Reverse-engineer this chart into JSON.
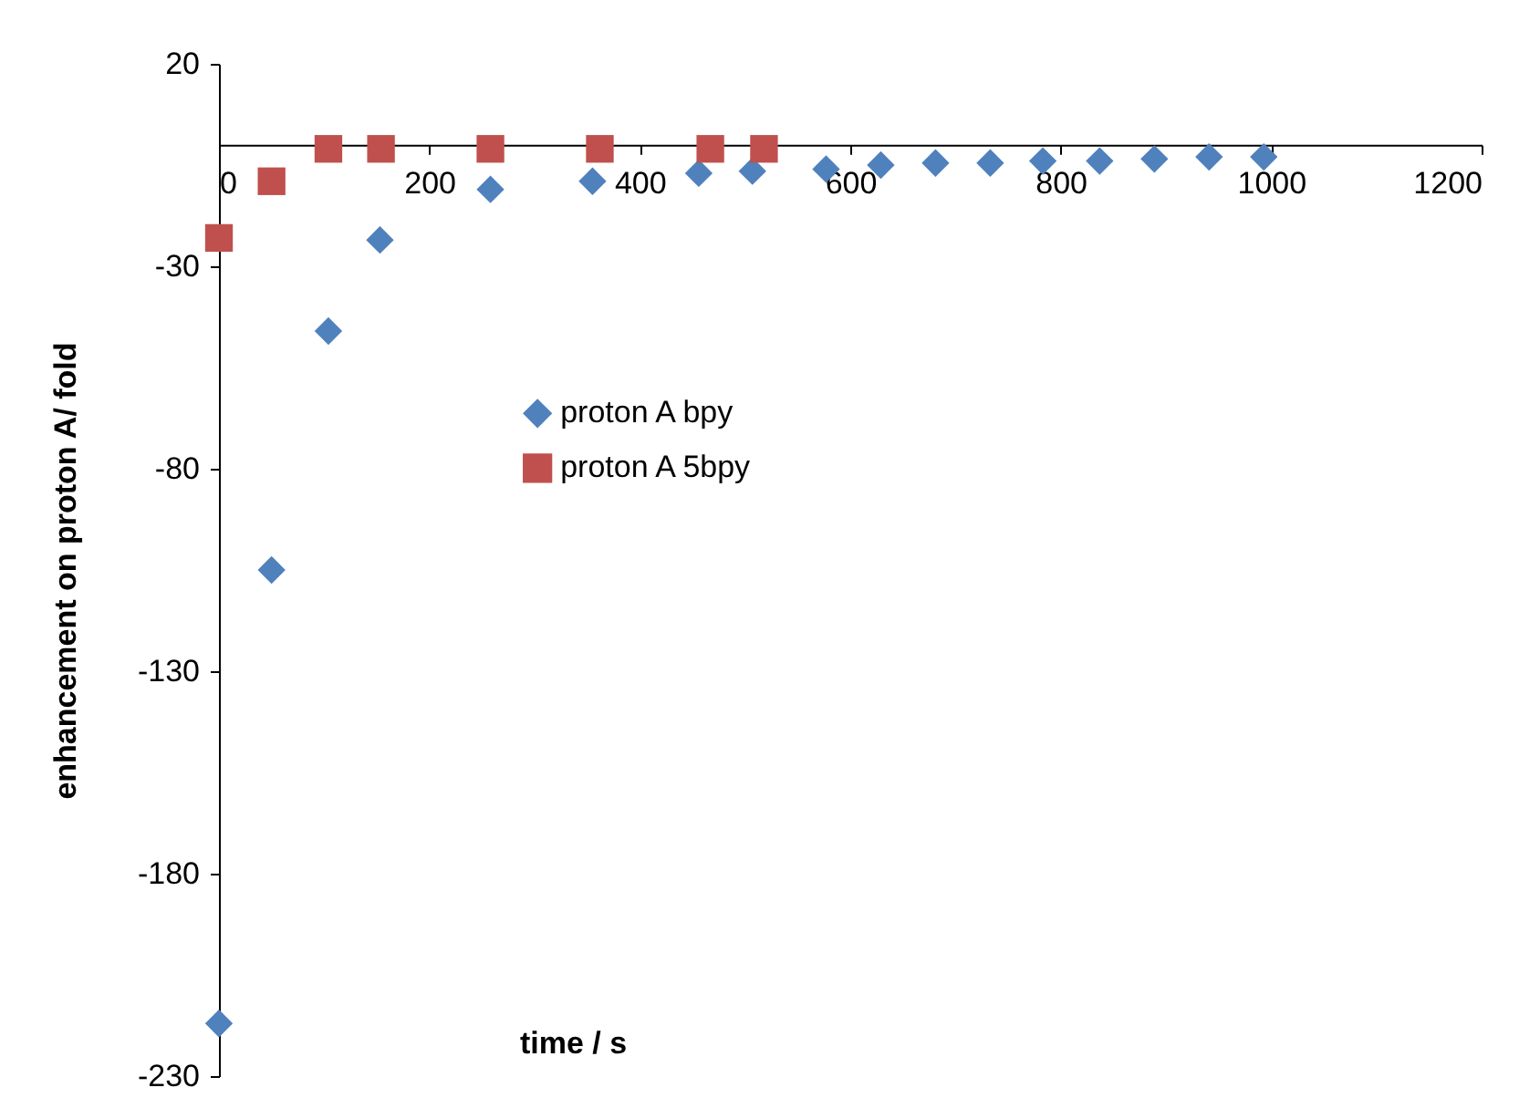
{
  "chart_data": {
    "type": "scatter",
    "xlabel": "time / s",
    "ylabel": "enhancement on proton A/ fold",
    "xlim": [
      0,
      1200
    ],
    "xticks": [
      0,
      200,
      400,
      600,
      800,
      1000,
      1200
    ],
    "ylim": [
      -230,
      20
    ],
    "yticks": [
      20,
      -30,
      -80,
      -130,
      -180,
      -230
    ],
    "grid": false,
    "legend": "center",
    "series": [
      {
        "name": "proton A bpy",
        "color": "#4f81bd",
        "marker": "diamond",
        "x": [
          0,
          50,
          104,
          153,
          258,
          355,
          456,
          507,
          577,
          629,
          681,
          733,
          783,
          837,
          889,
          941,
          993
        ],
        "values": [
          -217,
          -105,
          -46,
          -23.5,
          -11,
          -9,
          -7,
          -6.5,
          -6,
          -5,
          -4.5,
          -4.5,
          -4,
          -4,
          -3.5,
          -3,
          -3
        ]
      },
      {
        "name": "proton A 5bpy",
        "color": "#c0504d",
        "marker": "square",
        "x": [
          0,
          50,
          104,
          154,
          258,
          362,
          467,
          518
        ],
        "values": [
          -23,
          -9,
          -1,
          -1,
          -1,
          -1,
          -1,
          -1
        ]
      }
    ]
  }
}
